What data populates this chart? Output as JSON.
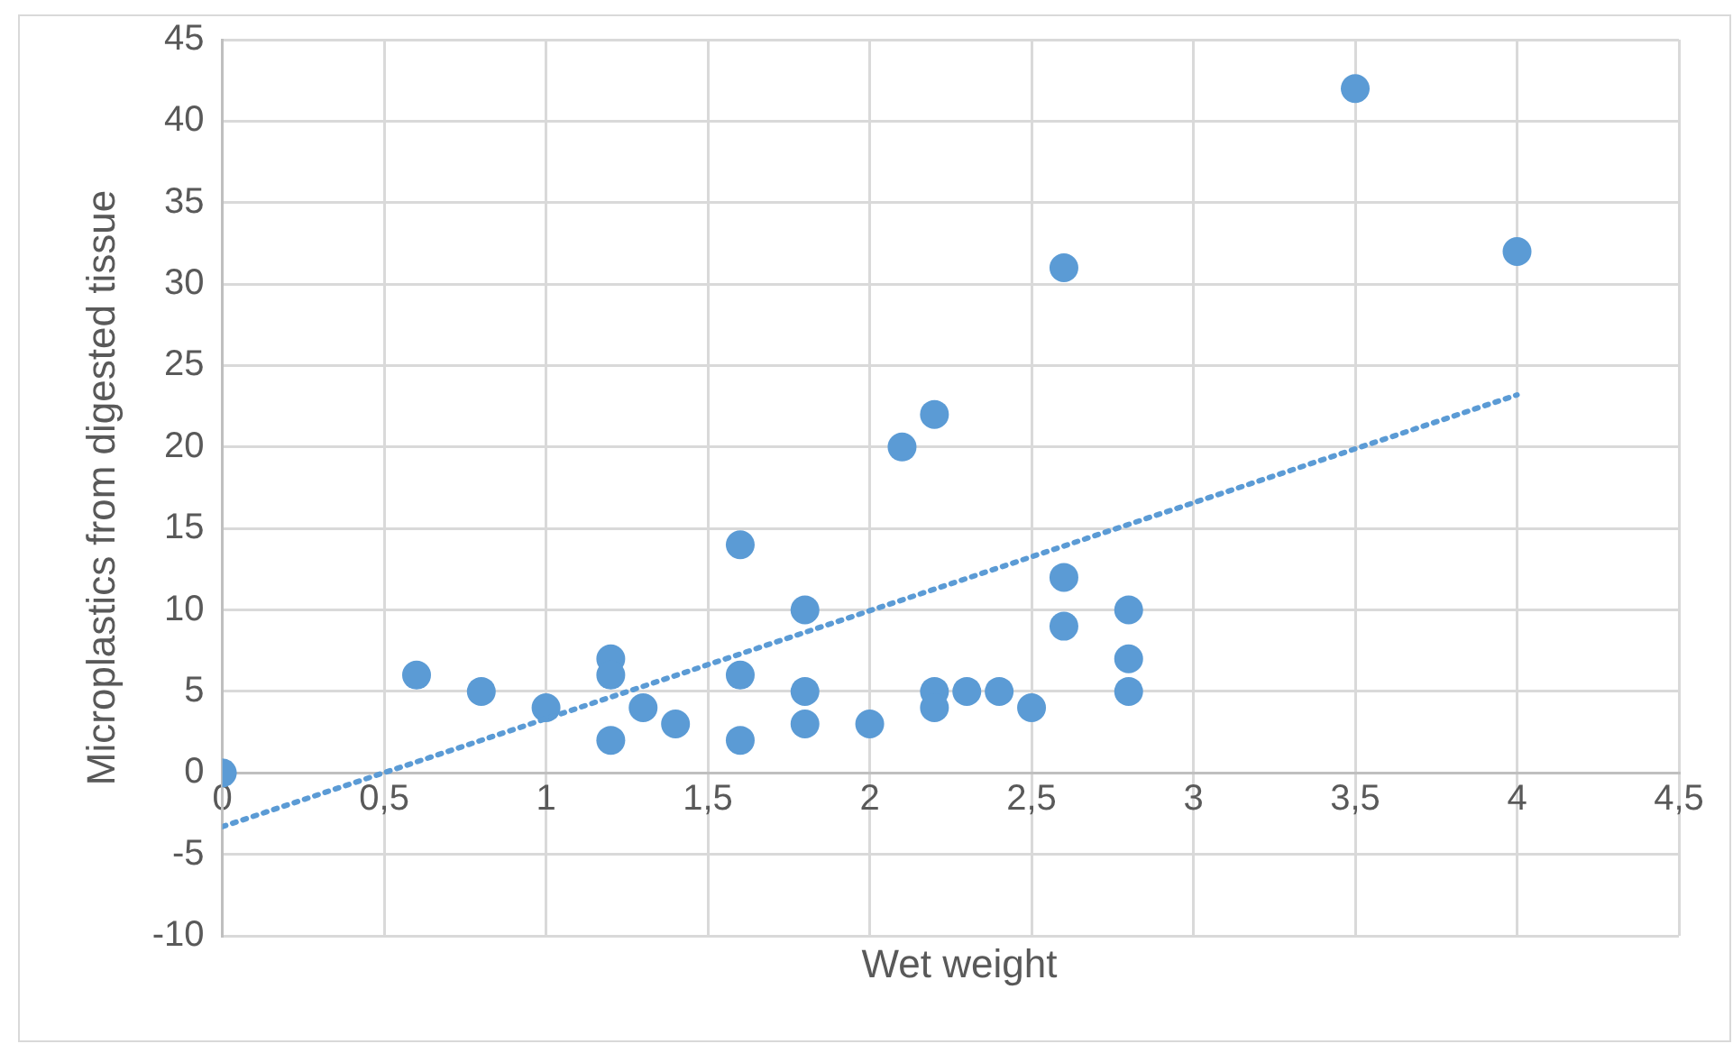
{
  "chart_data": {
    "type": "scatter",
    "xlabel": "Wet weight",
    "ylabel": "Microplastics from digested tissue",
    "x": [
      0,
      0.6,
      0.8,
      1,
      1.2,
      1.2,
      1.2,
      1.3,
      1.4,
      1.6,
      1.6,
      1.6,
      1.8,
      1.8,
      1.8,
      2,
      2.1,
      2.2,
      2.2,
      2.2,
      2.3,
      2.4,
      2.5,
      2.6,
      2.6,
      2.6,
      2.8,
      2.8,
      2.8,
      3.5,
      4
    ],
    "series": [
      {
        "type": "scatter",
        "color": "#5b9bd5",
        "marker": "circle",
        "values": [
          0,
          6,
          5,
          4,
          7,
          6,
          2,
          4,
          3,
          14,
          6,
          2,
          10,
          5,
          3,
          3,
          20,
          22,
          5,
          4,
          5,
          5,
          4,
          31,
          12,
          9,
          10,
          7,
          5,
          42,
          32
        ]
      },
      {
        "type": "line",
        "color": "#5b9bd5",
        "marker": "none",
        "line_style": "dotted",
        "x": [
          0,
          4
        ],
        "values": [
          -3.3,
          23.2
        ]
      }
    ],
    "xlim": [
      0,
      4.5
    ],
    "xticks": [
      {
        "value": 0,
        "label": "0"
      },
      {
        "value": 0.5,
        "label": "0,5"
      },
      {
        "value": 1,
        "label": "1"
      },
      {
        "value": 1.5,
        "label": "1,5"
      },
      {
        "value": 2,
        "label": "2"
      },
      {
        "value": 2.5,
        "label": "2,5"
      },
      {
        "value": 3,
        "label": "3"
      },
      {
        "value": 3.5,
        "label": "3,5"
      },
      {
        "value": 4,
        "label": "4"
      },
      {
        "value": 4.5,
        "label": "4,5"
      }
    ],
    "ylim": [
      -10,
      45
    ],
    "yticks": [
      -10,
      -5,
      0,
      5,
      10,
      15,
      20,
      25,
      30,
      35,
      40,
      45
    ],
    "grid": true,
    "legend": false
  }
}
